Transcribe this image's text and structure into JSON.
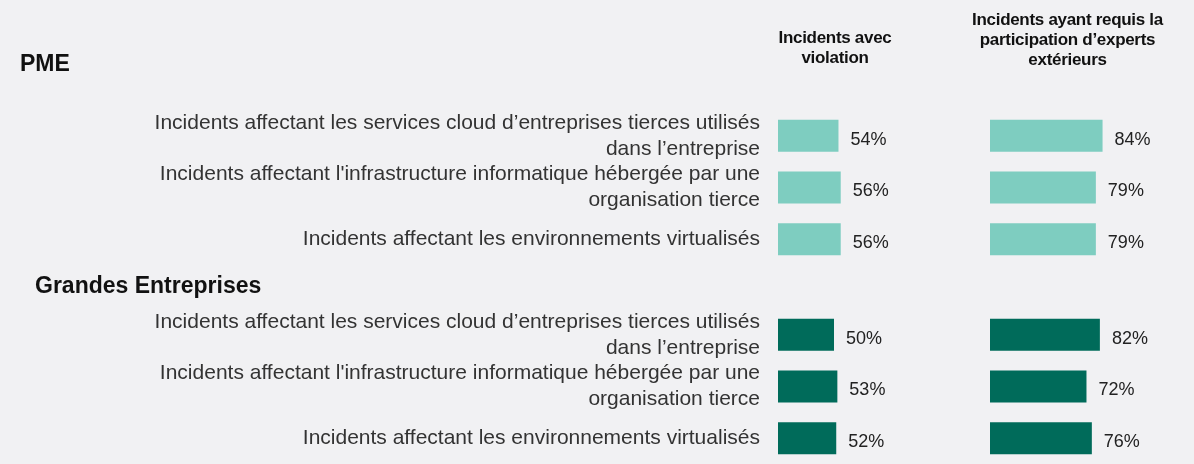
{
  "chart_data": [
    {
      "type": "bar",
      "orientation": "horizontal",
      "title": "PME",
      "xlabel": "Incidents avec violation",
      "tick_labels": "y",
      "categories": [
        "Incidents affectant les services cloud d’entreprises tierces utilisés dans l’entreprise",
        "Incidents affectant l'infrastructure informatique hébergée par une organisation tierce",
        "Incidents affectant les environnements virtualisés"
      ],
      "values": [
        54,
        56,
        56
      ],
      "value_labels": [
        "54%",
        "56%",
        "56%"
      ],
      "color": "#7ecdc0"
    },
    {
      "type": "bar",
      "orientation": "horizontal",
      "xlabel": "Incidents ayant requis la participation d’experts extérieurs",
      "tick_labels": false,
      "categories": [
        null,
        null,
        null
      ],
      "values": [
        84,
        79,
        79
      ],
      "value_labels": [
        "84%",
        "79%",
        "79%"
      ],
      "color": "#7ecdc0"
    },
    {
      "type": "bar",
      "orientation": "horizontal",
      "title": "Grandes Entreprises",
      "tick_labels": "y",
      "categories": [
        "Incidents affectant les services cloud d’entreprises tierces utilisés dans l’entreprise",
        "Incidents affectant l'infrastructure informatique hébergée par une organisation tierce",
        "Incidents affectant les environnements virtualisés"
      ],
      "values": [
        50,
        53,
        52
      ],
      "value_labels": [
        "50%",
        "53%",
        "52%"
      ],
      "color": "#006b5a"
    },
    {
      "type": "bar",
      "orientation": "horizontal",
      "tick_labels": false,
      "categories": [
        null,
        null,
        null
      ],
      "values": [
        82,
        72,
        76
      ],
      "value_labels": [
        "82%",
        "72%",
        "76%"
      ],
      "color": "#006b5a"
    }
  ]
}
